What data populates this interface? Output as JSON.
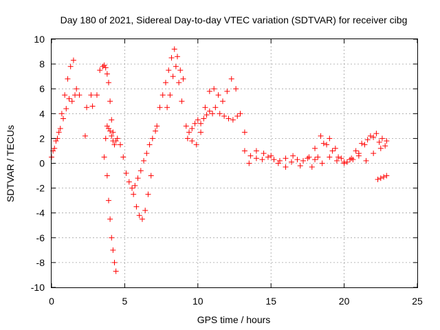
{
  "chart_data": {
    "type": "scatter",
    "title": "Day 180 of 2021, Sidereal Day-to-day VTEC variation (SDTVAR) for receiver cibg",
    "xlabel": "GPS time / hours",
    "ylabel": "SDTVAR / TECUs",
    "xlim": [
      0,
      25
    ],
    "ylim": [
      -10,
      10
    ],
    "xticks": [
      0,
      5,
      10,
      15,
      20,
      25
    ],
    "yticks": [
      -10,
      -8,
      -6,
      -4,
      -2,
      0,
      2,
      4,
      6,
      8,
      10
    ],
    "grid": true,
    "marker": "+",
    "series_color": "#ff0000",
    "series": [
      {
        "name": "SDTVAR",
        "x": [
          0.0,
          0.2,
          0.4,
          0.6,
          0.8,
          1.0,
          1.2,
          1.4,
          1.6,
          0.1,
          0.3,
          0.5,
          0.7,
          0.9,
          1.1,
          1.3,
          1.5,
          1.7,
          1.9,
          2.3,
          2.4,
          2.7,
          2.8,
          3.1,
          3.3,
          3.5,
          3.6,
          3.7,
          3.8,
          3.9,
          4.0,
          4.1,
          4.2,
          3.6,
          3.8,
          3.9,
          4.0,
          4.1,
          4.2,
          4.3,
          4.4,
          3.7,
          3.8,
          3.9,
          4.0,
          4.1,
          4.2,
          4.3,
          4.4,
          4.5,
          4.7,
          4.9,
          5.1,
          5.3,
          5.5,
          5.7,
          5.9,
          6.1,
          6.3,
          6.5,
          6.7,
          6.9,
          7.1,
          5.6,
          5.8,
          6.0,
          6.2,
          6.4,
          6.6,
          6.8,
          7.2,
          7.4,
          7.6,
          7.8,
          8.0,
          8.2,
          8.4,
          8.6,
          8.8,
          9.0,
          7.9,
          8.1,
          8.3,
          8.5,
          8.7,
          8.9,
          9.2,
          9.4,
          9.6,
          9.8,
          10.0,
          10.2,
          10.4,
          10.6,
          10.8,
          11.0,
          9.3,
          9.6,
          9.9,
          10.2,
          10.5,
          10.8,
          11.1,
          11.4,
          11.7,
          12.0,
          12.3,
          12.6,
          12.9,
          13.2,
          11.2,
          11.5,
          11.8,
          12.1,
          12.4,
          12.7,
          13.2,
          13.6,
          14.0,
          14.4,
          14.8,
          15.2,
          15.6,
          16.0,
          16.4,
          16.8,
          17.2,
          17.6,
          18.0,
          13.5,
          14.0,
          14.5,
          15.0,
          15.5,
          16.0,
          16.5,
          17.0,
          17.5,
          17.8,
          18.2,
          18.6,
          19.0,
          19.4,
          19.8,
          20.2,
          20.6,
          21.0,
          21.4,
          21.8,
          22.2,
          22.6,
          22.9,
          18.0,
          18.4,
          18.8,
          19.2,
          19.6,
          20.0,
          20.4,
          20.8,
          21.2,
          21.6,
          22.0,
          22.4,
          22.8,
          18.5,
          19.0,
          19.5,
          20.0,
          20.5,
          21.0,
          21.5,
          22.0,
          22.5,
          22.3,
          22.5,
          22.7,
          22.9
        ],
        "y": [
          0.5,
          1.2,
          2.0,
          2.8,
          3.6,
          4.4,
          5.2,
          5.0,
          5.5,
          1.0,
          1.8,
          2.5,
          4.0,
          5.5,
          6.8,
          7.8,
          8.3,
          6.0,
          5.5,
          2.2,
          4.5,
          5.5,
          4.6,
          5.5,
          7.5,
          7.8,
          7.9,
          7.7,
          7.2,
          6.5,
          5.0,
          3.5,
          2.5,
          0.5,
          -1.0,
          -3.0,
          -4.5,
          -6.0,
          -7.0,
          -8.0,
          -8.7,
          2.0,
          3.0,
          2.8,
          2.6,
          2.2,
          1.8,
          1.5,
          1.8,
          2.0,
          1.5,
          0.5,
          -0.8,
          -1.5,
          -2.0,
          -1.8,
          -1.2,
          -0.6,
          0.2,
          0.8,
          1.5,
          2.0,
          2.6,
          -2.5,
          -3.5,
          -4.2,
          -4.5,
          -3.8,
          -2.5,
          -1.0,
          3.0,
          4.5,
          5.5,
          6.5,
          7.5,
          8.5,
          9.2,
          8.6,
          7.5,
          6.8,
          4.5,
          5.5,
          7.0,
          7.8,
          6.5,
          5.0,
          3.0,
          2.5,
          2.8,
          3.2,
          3.5,
          3.2,
          3.6,
          3.9,
          4.2,
          4.0,
          2.0,
          1.8,
          1.5,
          2.5,
          4.5,
          5.8,
          6.0,
          5.5,
          5.0,
          5.8,
          6.8,
          6.0,
          4.0,
          2.5,
          4.5,
          4.0,
          3.8,
          3.6,
          3.5,
          3.8,
          1.0,
          0.6,
          0.4,
          0.3,
          0.5,
          0.3,
          0.2,
          0.4,
          0.1,
          0.3,
          0.2,
          0.5,
          0.3,
          0.0,
          1.0,
          0.8,
          0.6,
          0.0,
          -0.3,
          0.6,
          -0.2,
          0.4,
          -0.3,
          0.5,
          1.6,
          2.0,
          1.2,
          0.4,
          0.1,
          0.3,
          0.8,
          1.5,
          2.2,
          2.4,
          2.0,
          1.8,
          1.2,
          2.2,
          1.5,
          1.0,
          0.5,
          0.0,
          0.3,
          1.0,
          1.6,
          1.9,
          2.1,
          1.7,
          1.4,
          0.0,
          0.5,
          0.2,
          0.1,
          0.4,
          0.6,
          0.2,
          0.8,
          1.2,
          -1.3,
          -1.2,
          -1.1,
          -1.0
        ]
      }
    ]
  }
}
